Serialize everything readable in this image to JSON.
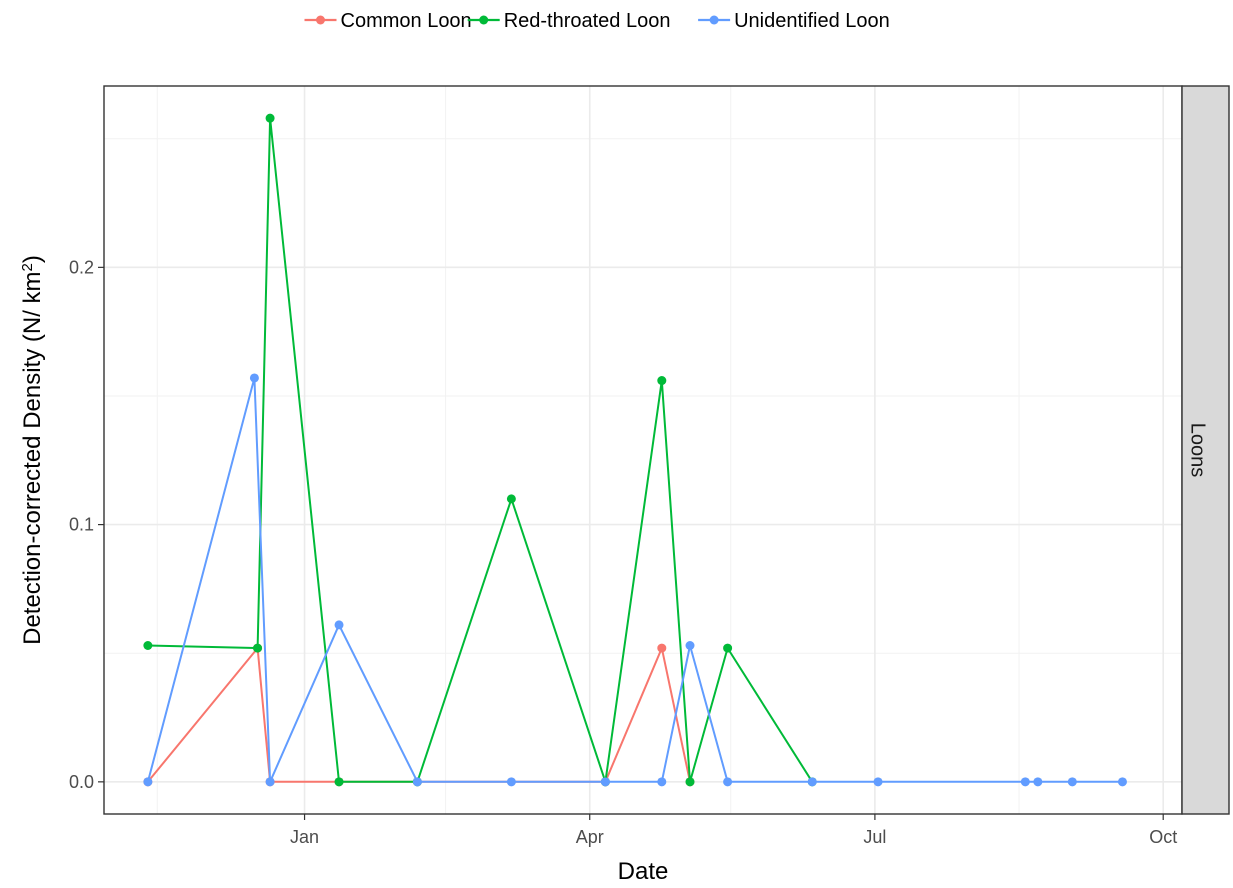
{
  "chart_data": {
    "type": "line",
    "xlabel": "Date",
    "ylabel": "Detection-corrected Density (N/ km",
    "ylabel_superscript": "2",
    "ylabel_suffix": ")",
    "facet_label": "Loons",
    "legend_position": "top",
    "grid": true,
    "x_range": [
      "2015-10-29",
      "2016-10-07"
    ],
    "ylim": [
      -0.0125,
      0.2705
    ],
    "x_ticks": [
      {
        "date": "2016-01-01",
        "label": "Jan"
      },
      {
        "date": "2016-04-01",
        "label": "Apr"
      },
      {
        "date": "2016-07-01",
        "label": "Jul"
      },
      {
        "date": "2016-10-01",
        "label": "Oct"
      }
    ],
    "x_minor_ticks": [
      "2015-11-15",
      "2016-02-15",
      "2016-05-16",
      "2016-08-16"
    ],
    "y_ticks": [
      0.0,
      0.1,
      0.2
    ],
    "y_tick_labels": [
      "0.0",
      "0.1",
      "0.2"
    ],
    "y_minor_ticks": [
      0.05,
      0.15,
      0.25
    ],
    "series": [
      {
        "name": "Common Loon",
        "color": "#F8766D",
        "points": [
          {
            "x": "2015-11-12",
            "y": 0.0
          },
          {
            "x": "2015-12-17",
            "y": 0.052
          },
          {
            "x": "2015-12-21",
            "y": 0.0
          },
          {
            "x": "2016-01-12",
            "y": 0.0
          },
          {
            "x": "2016-02-06",
            "y": 0.0
          },
          {
            "x": "2016-04-06",
            "y": 0.0
          },
          {
            "x": "2016-04-24",
            "y": 0.052
          },
          {
            "x": "2016-05-03",
            "y": 0.0
          }
        ]
      },
      {
        "name": "Red-throated Loon",
        "color": "#00BA38",
        "points": [
          {
            "x": "2015-11-12",
            "y": 0.053
          },
          {
            "x": "2015-12-17",
            "y": 0.052
          },
          {
            "x": "2015-12-21",
            "y": 0.258
          },
          {
            "x": "2016-01-12",
            "y": 0.0
          },
          {
            "x": "2016-02-06",
            "y": 0.0
          },
          {
            "x": "2016-03-07",
            "y": 0.11
          },
          {
            "x": "2016-04-06",
            "y": 0.0
          },
          {
            "x": "2016-04-24",
            "y": 0.156
          },
          {
            "x": "2016-05-03",
            "y": 0.0
          },
          {
            "x": "2016-05-15",
            "y": 0.052
          },
          {
            "x": "2016-06-11",
            "y": 0.0
          }
        ]
      },
      {
        "name": "Unidentified Loon",
        "color": "#619CFF",
        "points": [
          {
            "x": "2015-11-12",
            "y": 0.0
          },
          {
            "x": "2015-12-16",
            "y": 0.157
          },
          {
            "x": "2015-12-21",
            "y": 0.0
          },
          {
            "x": "2016-01-12",
            "y": 0.061
          },
          {
            "x": "2016-02-06",
            "y": 0.0
          },
          {
            "x": "2016-03-07",
            "y": 0.0
          },
          {
            "x": "2016-04-06",
            "y": 0.0
          },
          {
            "x": "2016-04-24",
            "y": 0.0
          },
          {
            "x": "2016-05-03",
            "y": 0.053
          },
          {
            "x": "2016-05-15",
            "y": 0.0
          },
          {
            "x": "2016-06-11",
            "y": 0.0
          },
          {
            "x": "2016-07-02",
            "y": 0.0
          },
          {
            "x": "2016-08-18",
            "y": 0.0
          },
          {
            "x": "2016-08-22",
            "y": 0.0
          },
          {
            "x": "2016-09-02",
            "y": 0.0
          },
          {
            "x": "2016-09-18",
            "y": 0.0
          }
        ]
      }
    ]
  }
}
